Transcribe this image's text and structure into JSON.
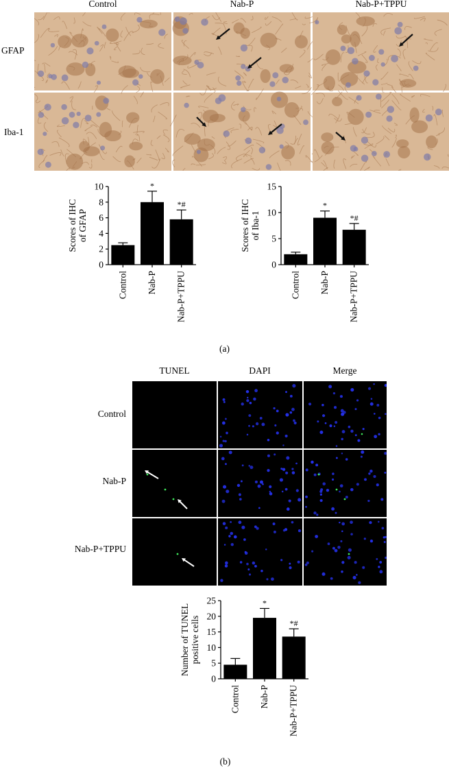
{
  "panel_a": {
    "label": "(a)",
    "columns": [
      "Control",
      "Nab-P",
      "Nab-P+TPPU"
    ],
    "rows": [
      "GFAP",
      "Iba-1"
    ],
    "colors": {
      "tissue_bg": "#d9b896",
      "tissue_dark": "#a5754d",
      "nucleus": "#7d7aa8",
      "arrow": "#111111"
    }
  },
  "panel_b": {
    "label": "(b)",
    "columns": [
      "TUNEL",
      "DAPI",
      "Merge"
    ],
    "rows": [
      "Control",
      "Nab-P",
      "Nab-P+TPPU"
    ],
    "colors": {
      "background": "#000000",
      "tunel": "#3ee65a",
      "dapi": "#2430e8",
      "arrow": "#ffffff"
    }
  },
  "chart_data": [
    {
      "type": "bar",
      "categories": [
        "Control",
        "Nab-P",
        "Nab-P+TPPU"
      ],
      "values": [
        2.5,
        8.0,
        5.8
      ],
      "errors": [
        0.3,
        1.4,
        1.2
      ],
      "significance": [
        "",
        "*",
        "*#"
      ],
      "ylabel": "Scores of IHC of GFAP",
      "ylabel_lines": [
        "Scores of IHC",
        "of GFAP"
      ],
      "ylim": [
        0,
        10
      ],
      "yticks": [
        0,
        2,
        4,
        6,
        8,
        10
      ],
      "bar_color": "#000000"
    },
    {
      "type": "bar",
      "categories": [
        "Control",
        "Nab-P",
        "Nab-P+TPPU"
      ],
      "values": [
        2.0,
        9.0,
        6.7
      ],
      "errors": [
        0.4,
        1.3,
        1.2
      ],
      "significance": [
        "",
        "*",
        "*#"
      ],
      "ylabel": "Scores of IHC of Iba-1",
      "ylabel_lines": [
        "Scores of IHC",
        "of Iba-1"
      ],
      "ylim": [
        0,
        15
      ],
      "yticks": [
        0,
        5,
        10,
        15
      ],
      "bar_color": "#000000"
    },
    {
      "type": "bar",
      "categories": [
        "Control",
        "Nab-P",
        "Nab-P+TPPU"
      ],
      "values": [
        4.5,
        19.5,
        13.5
      ],
      "errors": [
        2.0,
        3.0,
        2.5
      ],
      "significance": [
        "",
        "*",
        "*#"
      ],
      "ylabel": "Number of TUNEL positive cells",
      "ylabel_lines": [
        "Number of TUNEL",
        "positive cells"
      ],
      "ylim": [
        0,
        25
      ],
      "yticks": [
        0,
        5,
        10,
        15,
        20,
        25
      ],
      "bar_color": "#000000"
    }
  ]
}
